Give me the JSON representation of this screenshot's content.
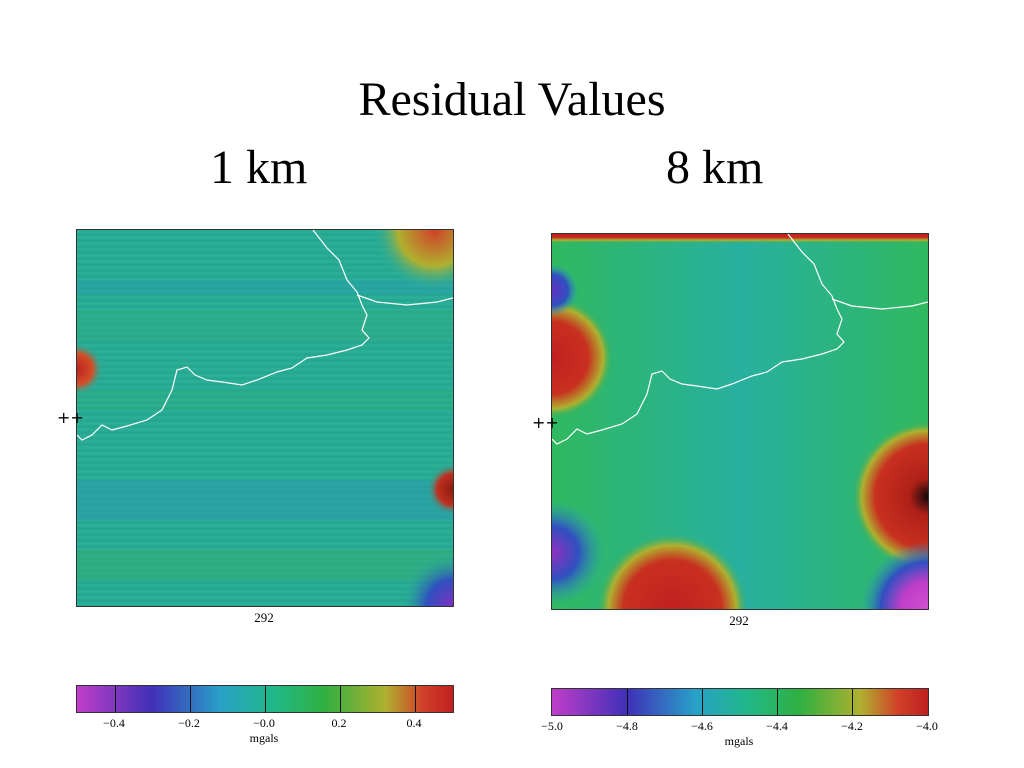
{
  "title": "Residual Values",
  "panels": [
    {
      "subtitle": "1 km",
      "x_tick": "292",
      "y_mark": "++",
      "colorbar": {
        "ticks": [
          "−0.4",
          "−0.2",
          "−0.0",
          "0.2",
          "0.4"
        ],
        "unit": "mgals"
      }
    },
    {
      "subtitle": "8 km",
      "x_tick": "292",
      "y_mark": "++",
      "colorbar": {
        "ticks": [
          "−5.0",
          "−4.8",
          "−4.6",
          "−4.4",
          "−4.2",
          "−4.0"
        ],
        "unit": "mgals"
      }
    }
  ],
  "colors": {
    "red": "#c02020",
    "green": "#30b040",
    "teal": "#20b0a0",
    "blue": "#3060c0",
    "magenta": "#c03ec8",
    "coastline": "#ffffff"
  }
}
